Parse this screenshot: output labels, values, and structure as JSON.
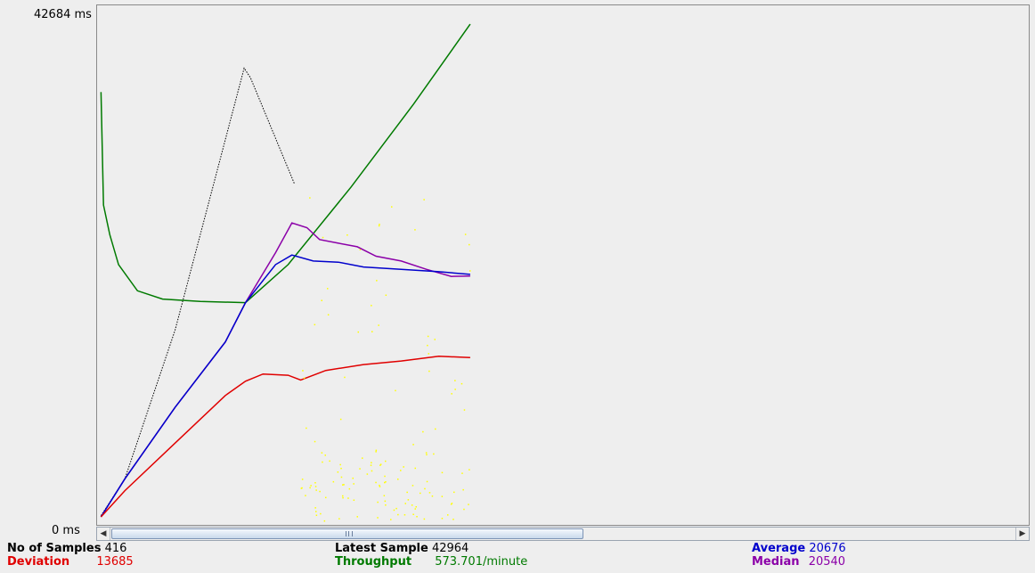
{
  "axis": {
    "y_max_label": "42684  ms",
    "y_min_label": "0  ms"
  },
  "colors": {
    "data": "#000000",
    "average": "#0000cc",
    "median": "#8b00a8",
    "deviation": "#e00000",
    "throughput": "#007a00",
    "samples": "#ffff00"
  },
  "stats": {
    "samples": {
      "label": "No of Samples",
      "value": "416"
    },
    "deviation": {
      "label": "Deviation",
      "value": "13685"
    },
    "latest": {
      "label": "Latest Sample",
      "value": "42964"
    },
    "throughput": {
      "label": "Throughput",
      "value": "573.701/minute"
    },
    "average": {
      "label": "Average",
      "value": "20676"
    },
    "median": {
      "label": "Median",
      "value": "20540"
    }
  },
  "scrollbar": {
    "left_icon": "arrow-left-icon",
    "right_icon": "arrow-right-icon",
    "grip_icon": "grip-icon"
  },
  "chart_data": {
    "type": "line",
    "ylim": [
      0,
      42684
    ],
    "grid": false,
    "series": [
      {
        "color": "#000000",
        "points": [
          [
            1,
            400
          ],
          [
            20,
            3500
          ],
          [
            60,
            16000
          ],
          [
            90,
            28000
          ],
          [
            115,
            38000
          ],
          [
            120,
            37200
          ],
          [
            155,
            28300
          ]
        ]
      },
      {
        "color": "#007a00",
        "points": [
          [
            1,
            36000
          ],
          [
            3,
            26500
          ],
          [
            8,
            24000
          ],
          [
            15,
            21500
          ],
          [
            30,
            19300
          ],
          [
            50,
            18600
          ],
          [
            80,
            18400
          ],
          [
            116,
            18300
          ],
          [
            150,
            21500
          ],
          [
            200,
            28000
          ],
          [
            250,
            35000
          ],
          [
            295,
            41700
          ]
        ]
      },
      {
        "color": "#8b00a8",
        "points": [
          [
            1,
            300
          ],
          [
            20,
            3500
          ],
          [
            60,
            9500
          ],
          [
            100,
            15000
          ],
          [
            116,
            18300
          ],
          [
            140,
            22500
          ],
          [
            153,
            25000
          ],
          [
            165,
            24600
          ],
          [
            175,
            23600
          ],
          [
            190,
            23300
          ],
          [
            205,
            23000
          ],
          [
            220,
            22200
          ],
          [
            240,
            21800
          ],
          [
            260,
            21100
          ],
          [
            280,
            20500
          ],
          [
            295,
            20540
          ]
        ]
      },
      {
        "color": "#0000cc",
        "points": [
          [
            1,
            300
          ],
          [
            20,
            3500
          ],
          [
            60,
            9500
          ],
          [
            100,
            15000
          ],
          [
            116,
            18300
          ],
          [
            140,
            21500
          ],
          [
            153,
            22300
          ],
          [
            170,
            21800
          ],
          [
            190,
            21700
          ],
          [
            210,
            21300
          ],
          [
            240,
            21100
          ],
          [
            270,
            20900
          ],
          [
            295,
            20676
          ]
        ]
      },
      {
        "color": "#e00000",
        "points": [
          [
            1,
            300
          ],
          [
            20,
            2500
          ],
          [
            60,
            6500
          ],
          [
            100,
            10500
          ],
          [
            116,
            11700
          ],
          [
            130,
            12300
          ],
          [
            150,
            12200
          ],
          [
            160,
            11800
          ],
          [
            180,
            12600
          ],
          [
            210,
            13100
          ],
          [
            240,
            13400
          ],
          [
            270,
            13800
          ],
          [
            295,
            13685
          ]
        ]
      }
    ]
  }
}
